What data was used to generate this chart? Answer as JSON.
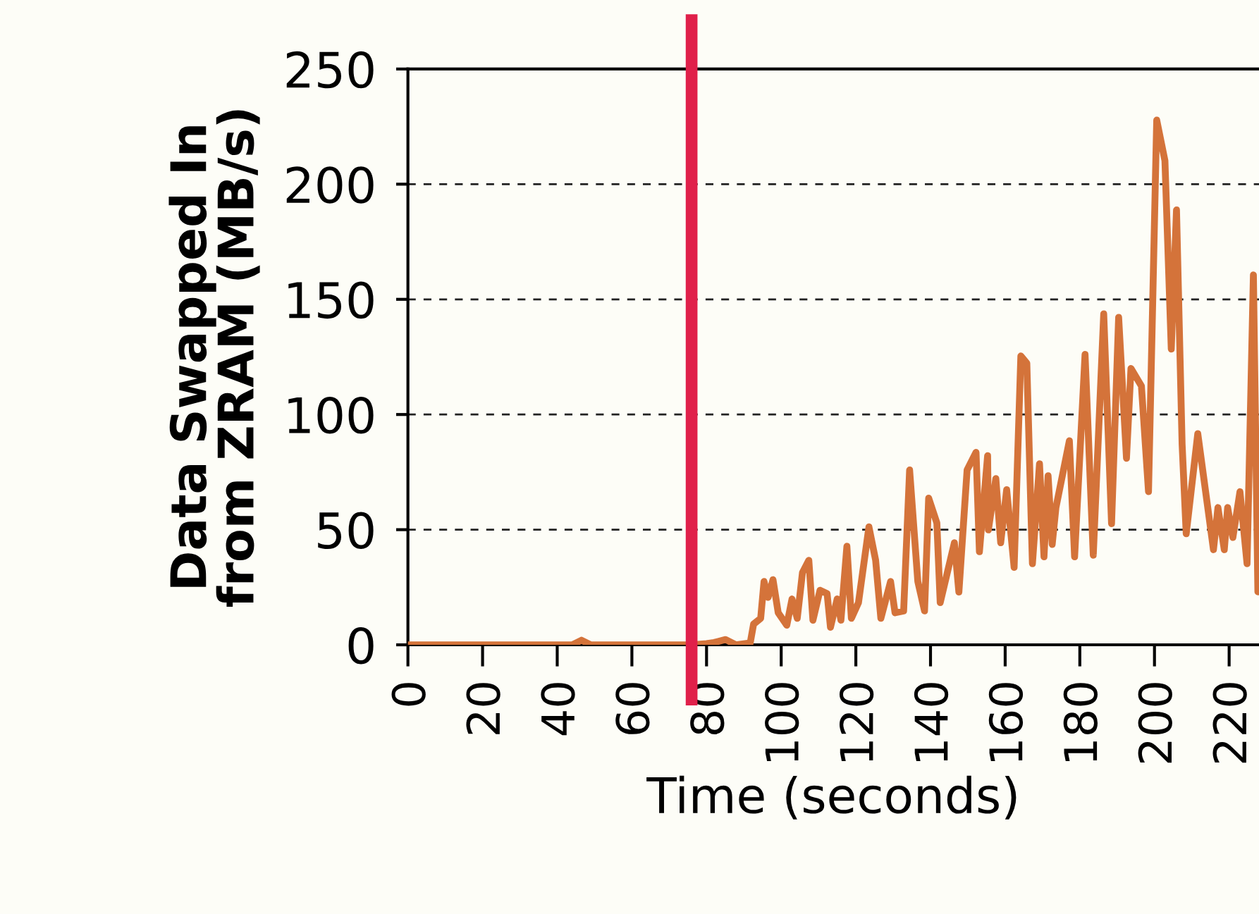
{
  "chart_data": {
    "type": "line",
    "xlabel": "Time (seconds)",
    "ylabel": "Data Swapped In\nfrom ZRAM (MB/s)",
    "xlim": [
      0,
      228
    ],
    "xticks": [
      0,
      20,
      40,
      60,
      80,
      100,
      120,
      140,
      160,
      180,
      200,
      220
    ],
    "ylim": [
      0,
      250
    ],
    "yticks": [
      0,
      50,
      100,
      150,
      200,
      250
    ],
    "grid": "y",
    "marker": "none",
    "line_style": "solid",
    "ref_lines": [
      {
        "axis": "x",
        "value": 76,
        "color": "#e0204a"
      }
    ],
    "series": [
      {
        "color": "#d4733a",
        "x": [
          0,
          44,
          46.5,
          49,
          76,
          80,
          82,
          85.1,
          87.9,
          91.7,
          92.6,
          94.5,
          95.4,
          96.5,
          97.8,
          99.2,
          101.5,
          102.9,
          104.3,
          105.7,
          107.4,
          108.5,
          110.4,
          112.3,
          113.2,
          115.0,
          116.0,
          117.6,
          118.8,
          120.7,
          123.5,
          125.3,
          126.7,
          129.3,
          130.5,
          132.8,
          134.4,
          136.6,
          138.4,
          139.5,
          141.7,
          142.6,
          146.4,
          147.6,
          149.8,
          152.2,
          153.1,
          155.3,
          155.5,
          157.5,
          158.8,
          160.4,
          162.4,
          164.2,
          165.8,
          167.3,
          169.2,
          170.4,
          171.5,
          172.6,
          173.6,
          177.2,
          178.6,
          181.4,
          183.6,
          186.4,
          188.5,
          190.4,
          192.5,
          193.7,
          196.5,
          198.4,
          200.6,
          202.8,
          204.5,
          205.9,
          207.4,
          208.5,
          211.6,
          215.8,
          217,
          218.7,
          219.6,
          221.0,
          222.9,
          224.8,
          226.5,
          227.7
        ],
        "values": [
          0,
          0,
          2,
          0,
          0,
          0.5,
          1,
          2.3,
          0,
          0.8,
          9,
          11.5,
          27.5,
          20.6,
          28.3,
          13.9,
          8.5,
          19.9,
          11.5,
          31.4,
          36.7,
          10.7,
          23.7,
          22.2,
          7.6,
          19.9,
          10.7,
          42.8,
          11.5,
          18.3,
          51.2,
          36.7,
          11.5,
          27.5,
          13.9,
          14.7,
          75.9,
          27.5,
          14.7,
          63.7,
          52.9,
          18.3,
          44.3,
          22.9,
          75.9,
          83.6,
          40.4,
          82.1,
          49.9,
          72.2,
          44.3,
          67.4,
          33.6,
          125.4,
          122.3,
          35.2,
          78.6,
          38.2,
          73.4,
          43.6,
          59.6,
          88.6,
          38.2,
          126.1,
          38.9,
          143.7,
          52.6,
          142.2,
          81.0,
          120.0,
          112.4,
          66.5,
          227.8,
          210.2,
          128.4,
          188.8,
          87.2,
          48.2,
          91.7,
          41.3,
          59.6,
          41.3,
          59.6,
          46.6,
          66.5,
          35.2,
          160.6,
          23.0
        ]
      }
    ]
  }
}
